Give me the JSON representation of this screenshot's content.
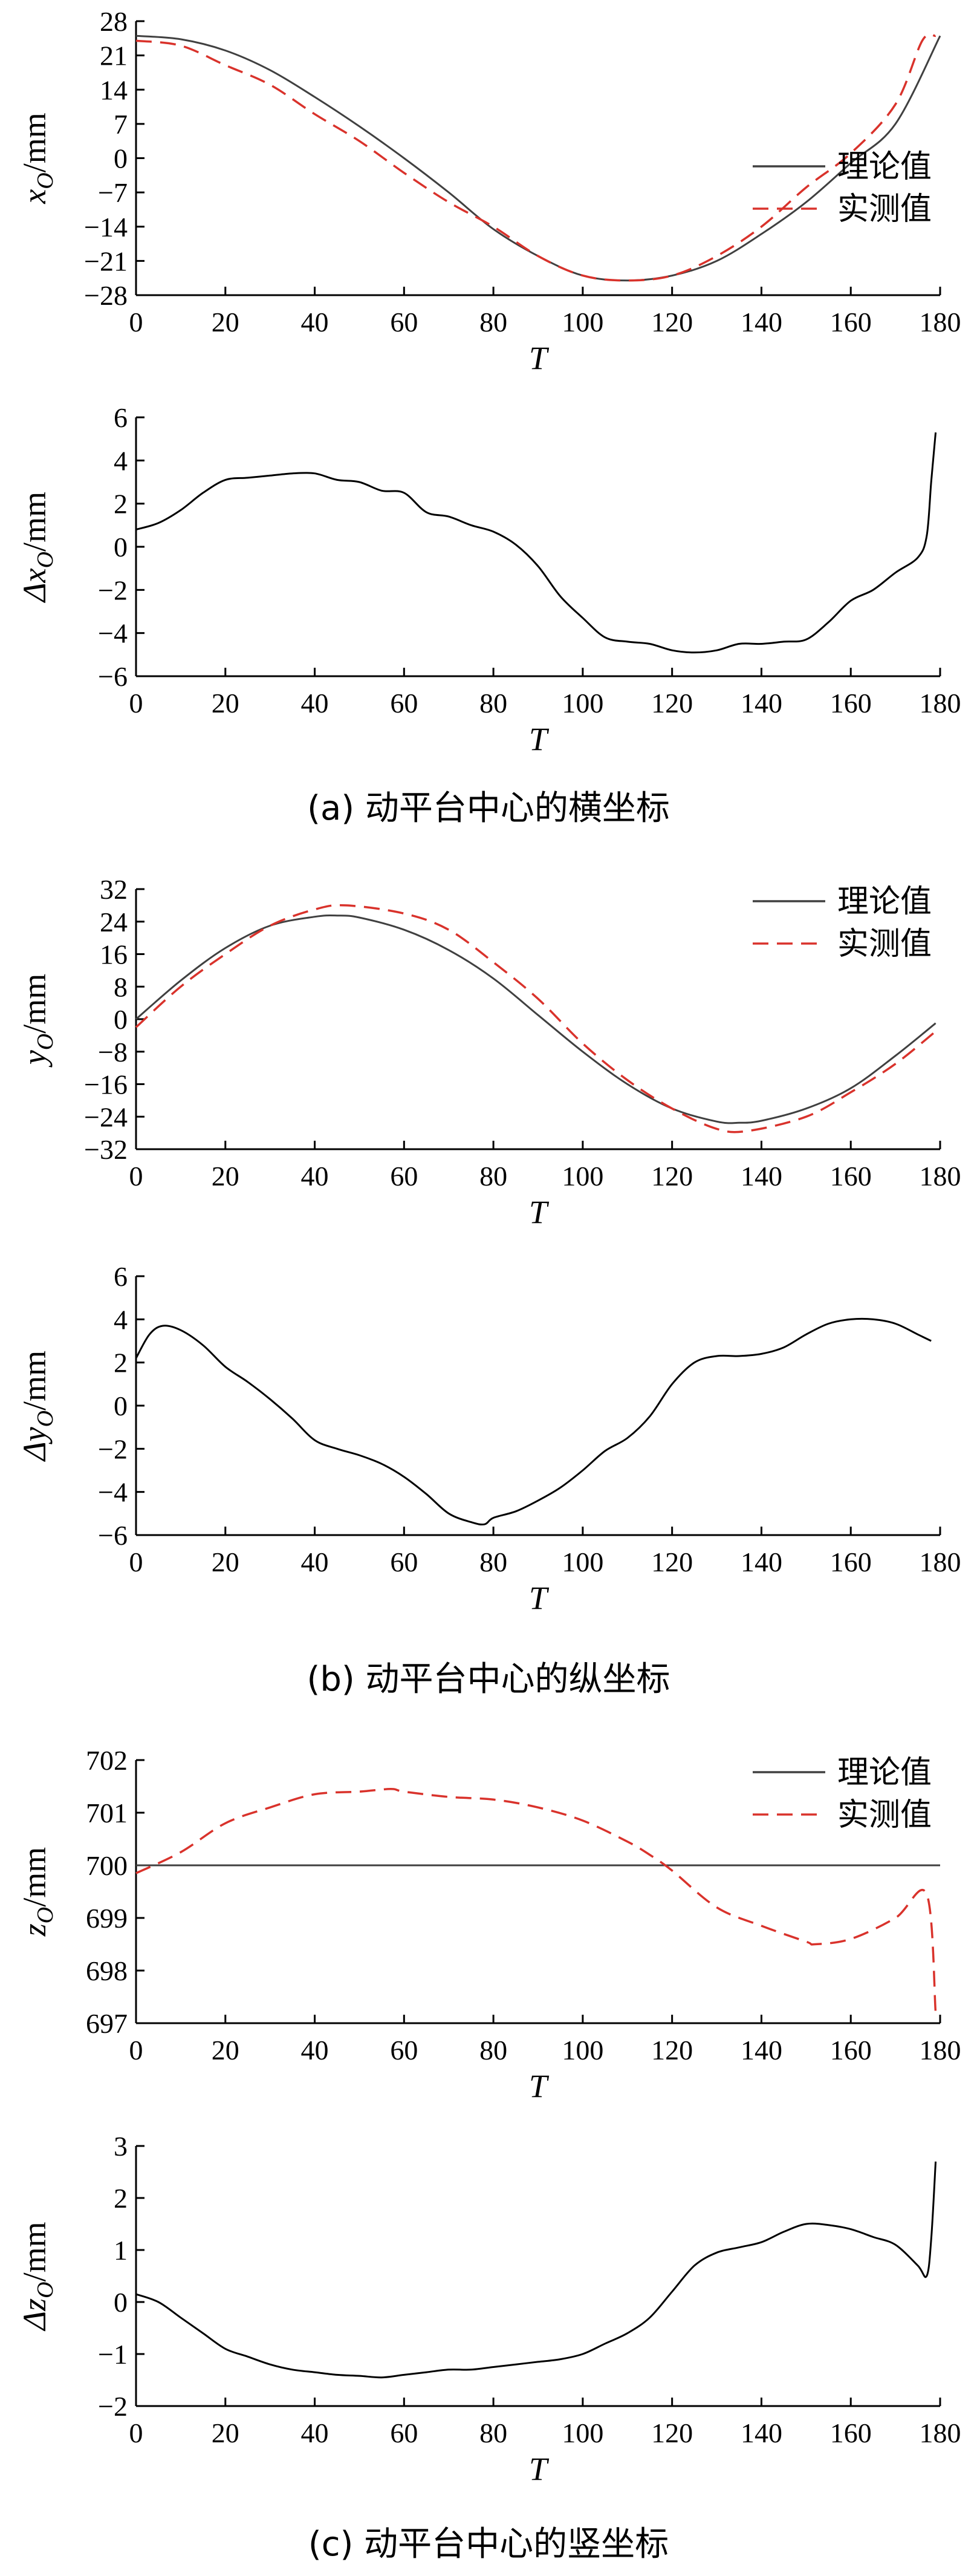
{
  "chart_data": [
    {
      "id": "xo",
      "type": "line",
      "ylabel_main": "x",
      "ylabel_sub": "O",
      "ylabel_unit": "/mm",
      "xlabel": "T",
      "xlim": [
        0,
        180
      ],
      "ylim": [
        -28,
        28
      ],
      "xticks": [
        0,
        20,
        40,
        60,
        80,
        100,
        120,
        140,
        160,
        180
      ],
      "yticks": [
        -28,
        -21,
        -14,
        -7,
        0,
        7,
        14,
        21,
        28
      ],
      "legend": "right",
      "series": [
        {
          "name": "理论值",
          "style": "solid",
          "color": "#404040",
          "x": [
            0,
            10,
            20,
            30,
            40,
            50,
            60,
            70,
            80,
            90,
            100,
            110,
            120,
            130,
            140,
            150,
            160,
            170,
            180
          ],
          "y": [
            25,
            24.3,
            22,
            18,
            12.5,
            6.5,
            0,
            -7,
            -14.5,
            -20,
            -24,
            -25,
            -24,
            -21,
            -15.5,
            -9,
            -1,
            7,
            25
          ]
        },
        {
          "name": "实测值",
          "style": "dashed",
          "color": "#d9322b",
          "x": [
            0,
            10,
            20,
            30,
            40,
            50,
            60,
            70,
            80,
            90,
            100,
            110,
            120,
            130,
            140,
            150,
            160,
            170,
            176,
            179
          ],
          "y": [
            24,
            23,
            19,
            15,
            9,
            3.5,
            -3,
            -9,
            -14,
            -20,
            -24,
            -25,
            -24,
            -20,
            -14,
            -6,
            1,
            11,
            24,
            25
          ]
        }
      ]
    },
    {
      "id": "dxo",
      "type": "line",
      "ylabel_main": "Δx",
      "ylabel_sub": "O",
      "ylabel_unit": "/mm",
      "xlabel": "T",
      "xlim": [
        0,
        180
      ],
      "ylim": [
        -6,
        6
      ],
      "xticks": [
        0,
        20,
        40,
        60,
        80,
        100,
        120,
        140,
        160,
        180
      ],
      "yticks": [
        -6,
        -4,
        -2,
        0,
        2,
        4,
        6
      ],
      "series": [
        {
          "name": "",
          "style": "solid",
          "color": "#000000",
          "x": [
            0,
            5,
            10,
            15,
            20,
            25,
            30,
            35,
            40,
            45,
            50,
            55,
            60,
            65,
            70,
            75,
            80,
            85,
            90,
            95,
            100,
            105,
            110,
            115,
            120,
            125,
            130,
            135,
            140,
            145,
            150,
            155,
            160,
            165,
            170,
            175,
            177,
            178,
            179
          ],
          "y": [
            0.8,
            1.1,
            1.7,
            2.5,
            3.1,
            3.2,
            3.3,
            3.4,
            3.4,
            3.1,
            3.0,
            2.6,
            2.5,
            1.6,
            1.4,
            1.0,
            0.7,
            0.1,
            -0.9,
            -2.3,
            -3.3,
            -4.2,
            -4.4,
            -4.5,
            -4.8,
            -4.9,
            -4.8,
            -4.5,
            -4.5,
            -4.4,
            -4.3,
            -3.5,
            -2.5,
            -2.0,
            -1.2,
            -0.5,
            0.5,
            3.0,
            5.3
          ]
        }
      ]
    },
    {
      "id": "yo",
      "type": "line",
      "ylabel_main": "y",
      "ylabel_sub": "O",
      "ylabel_unit": "/mm",
      "xlabel": "T",
      "xlim": [
        0,
        180
      ],
      "ylim": [
        -32,
        32
      ],
      "xticks": [
        0,
        20,
        40,
        60,
        80,
        100,
        120,
        140,
        160,
        180
      ],
      "yticks": [
        -32,
        -24,
        -16,
        -8,
        0,
        8,
        16,
        24,
        32
      ],
      "legend": "top-right",
      "series": [
        {
          "name": "理论值",
          "style": "solid",
          "color": "#404040",
          "x": [
            0,
            10,
            20,
            30,
            40,
            45,
            50,
            60,
            70,
            80,
            90,
            100,
            110,
            120,
            130,
            135,
            140,
            150,
            160,
            170,
            179
          ],
          "y": [
            0,
            9.5,
            17.5,
            23,
            25.2,
            25.5,
            25,
            22,
            17,
            10,
            1,
            -8,
            -16,
            -22,
            -25.2,
            -25.5,
            -25,
            -22,
            -17,
            -9,
            -1
          ]
        },
        {
          "name": "实测值",
          "style": "dashed",
          "color": "#d9322b",
          "x": [
            0,
            10,
            20,
            30,
            40,
            47,
            60,
            70,
            80,
            90,
            100,
            110,
            120,
            130,
            137,
            150,
            160,
            170,
            179
          ],
          "y": [
            -2,
            8,
            16,
            23,
            27,
            28,
            26,
            22,
            14,
            5,
            -6,
            -15,
            -22,
            -27,
            -27.5,
            -24,
            -18,
            -11,
            -3
          ]
        }
      ]
    },
    {
      "id": "dyo",
      "type": "line",
      "ylabel_main": "Δy",
      "ylabel_sub": "O",
      "ylabel_unit": "/mm",
      "xlabel": "T",
      "xlim": [
        0,
        180
      ],
      "ylim": [
        -6,
        6
      ],
      "xticks": [
        0,
        20,
        40,
        60,
        80,
        100,
        120,
        140,
        160,
        180
      ],
      "yticks": [
        -6,
        -4,
        -2,
        0,
        2,
        4,
        6
      ],
      "series": [
        {
          "name": "",
          "style": "solid",
          "color": "#000000",
          "x": [
            0,
            3,
            6,
            10,
            15,
            20,
            25,
            30,
            35,
            40,
            45,
            50,
            55,
            60,
            65,
            70,
            75,
            78,
            80,
            85,
            90,
            95,
            100,
            105,
            110,
            115,
            120,
            125,
            130,
            135,
            140,
            145,
            150,
            155,
            160,
            165,
            170,
            175,
            178
          ],
          "y": [
            2.2,
            3.3,
            3.7,
            3.5,
            2.8,
            1.8,
            1.1,
            0.3,
            -0.6,
            -1.6,
            -2.0,
            -2.3,
            -2.7,
            -3.3,
            -4.1,
            -5.0,
            -5.4,
            -5.5,
            -5.2,
            -4.9,
            -4.4,
            -3.8,
            -3.0,
            -2.1,
            -1.5,
            -0.5,
            1.0,
            2.0,
            2.3,
            2.3,
            2.4,
            2.7,
            3.3,
            3.8,
            4.0,
            4.0,
            3.8,
            3.3,
            3.0
          ]
        }
      ]
    },
    {
      "id": "zo",
      "type": "line",
      "ylabel_main": "z",
      "ylabel_sub": "O",
      "ylabel_unit": "/mm",
      "xlabel": "T",
      "xlim": [
        0,
        180
      ],
      "ylim": [
        697,
        702
      ],
      "xticks": [
        0,
        20,
        40,
        60,
        80,
        100,
        120,
        140,
        160,
        180
      ],
      "yticks": [
        697,
        698,
        699,
        700,
        701,
        702
      ],
      "legend": "top-right",
      "series": [
        {
          "name": "理论值",
          "style": "solid",
          "color": "#404040",
          "x": [
            0,
            180
          ],
          "y": [
            700,
            700
          ]
        },
        {
          "name": "实测值",
          "style": "dashed",
          "color": "#d9322b",
          "x": [
            0,
            10,
            20,
            30,
            40,
            50,
            57,
            60,
            70,
            80,
            90,
            100,
            110,
            115,
            120,
            130,
            140,
            150,
            152,
            160,
            170,
            177,
            179
          ],
          "y": [
            699.85,
            700.25,
            700.8,
            701.1,
            701.35,
            701.4,
            701.45,
            701.4,
            701.3,
            701.25,
            701.1,
            700.85,
            700.45,
            700.2,
            699.9,
            699.2,
            698.85,
            698.55,
            698.5,
            698.6,
            699.0,
            699.45,
            697.2
          ]
        }
      ]
    },
    {
      "id": "dzo",
      "type": "line",
      "ylabel_main": "Δz",
      "ylabel_sub": "O",
      "ylabel_unit": "/mm",
      "xlabel": "T",
      "xlim": [
        0,
        180
      ],
      "ylim": [
        -2,
        3
      ],
      "xticks": [
        0,
        20,
        40,
        60,
        80,
        100,
        120,
        140,
        160,
        180
      ],
      "yticks": [
        -2,
        -1,
        0,
        1,
        2,
        3
      ],
      "series": [
        {
          "name": "",
          "style": "solid",
          "color": "#000000",
          "x": [
            0,
            5,
            10,
            15,
            20,
            25,
            30,
            35,
            40,
            45,
            50,
            55,
            60,
            65,
            70,
            75,
            80,
            85,
            90,
            95,
            100,
            105,
            110,
            115,
            120,
            125,
            130,
            135,
            140,
            145,
            150,
            155,
            160,
            165,
            170,
            175,
            177,
            178,
            179
          ],
          "y": [
            0.15,
            0.0,
            -0.3,
            -0.6,
            -0.9,
            -1.05,
            -1.2,
            -1.3,
            -1.35,
            -1.4,
            -1.42,
            -1.45,
            -1.4,
            -1.35,
            -1.3,
            -1.3,
            -1.25,
            -1.2,
            -1.15,
            -1.1,
            -1.0,
            -0.8,
            -0.6,
            -0.3,
            0.2,
            0.7,
            0.95,
            1.05,
            1.15,
            1.35,
            1.5,
            1.48,
            1.4,
            1.25,
            1.1,
            0.7,
            0.5,
            1.2,
            2.7
          ]
        }
      ]
    }
  ],
  "captions": {
    "a": "(a)  动平台中心的横坐标",
    "b": "(b)  动平台中心的纵坐标",
    "c": "(c)  动平台中心的竖坐标"
  }
}
